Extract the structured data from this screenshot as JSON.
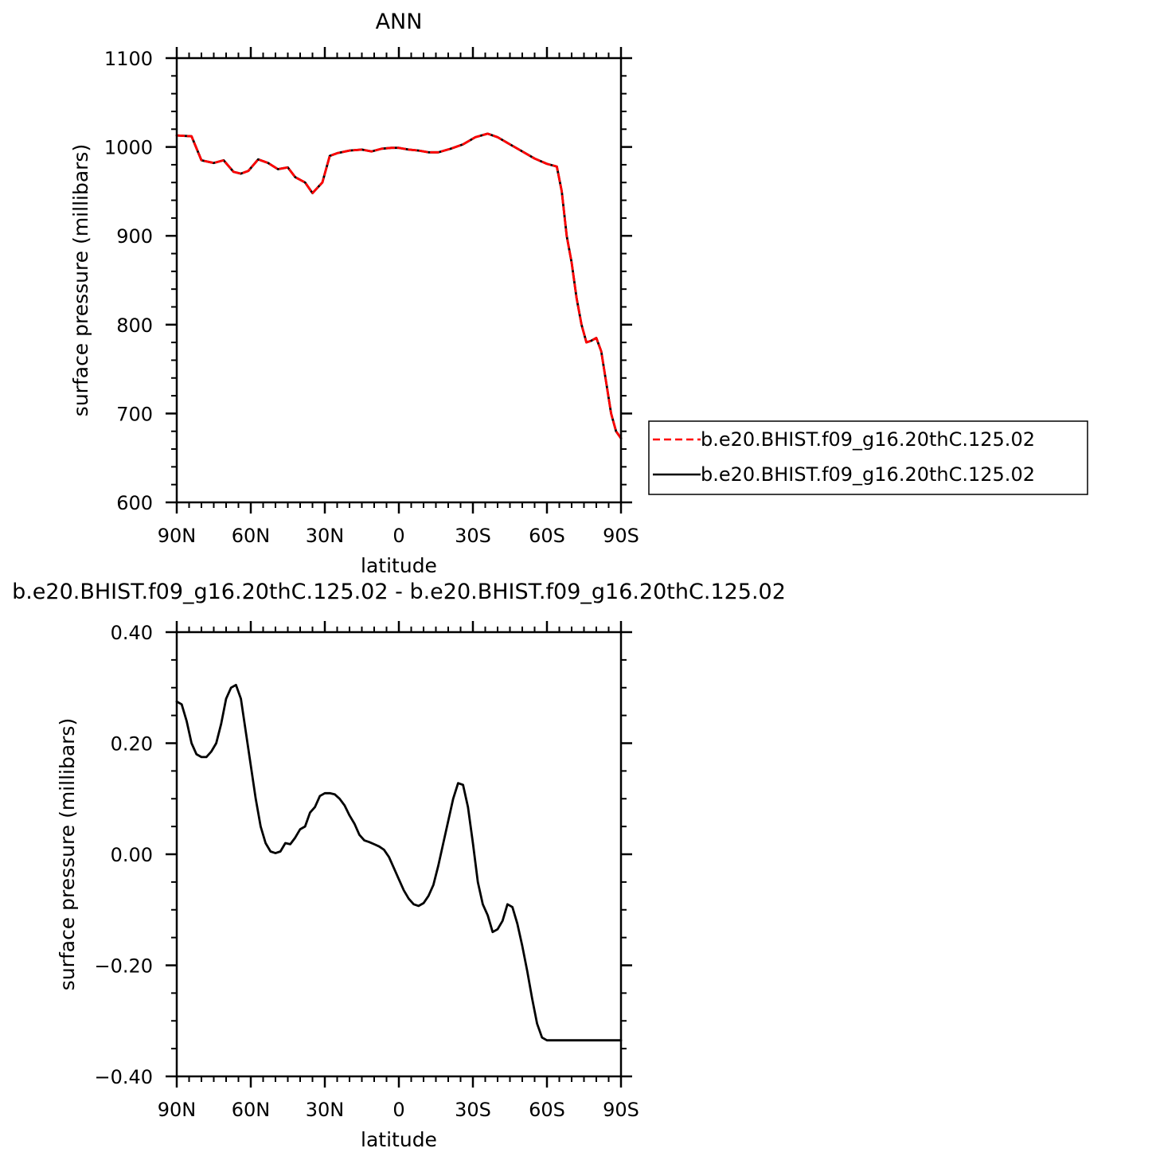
{
  "chart_data": [
    {
      "type": "line",
      "title": "ANN",
      "xlabel": "latitude",
      "ylabel": "surface pressure (millibars)",
      "xlim": [
        -90,
        90
      ],
      "ylim": [
        600,
        1100
      ],
      "x_ticks": [
        -90,
        -60,
        -30,
        0,
        30,
        60,
        90
      ],
      "x_tick_labels": [
        "90N",
        "60N",
        "30N",
        "0",
        "30S",
        "60S",
        "90S"
      ],
      "y_ticks": [
        600,
        700,
        800,
        900,
        1000,
        1100
      ],
      "y_tick_labels": [
        "600",
        "700",
        "800",
        "900",
        "1000",
        "1100"
      ],
      "legend": {
        "placement": "right",
        "entries": [
          {
            "label": "b.e20.BHIST.f09_g16.20thC.125.02",
            "color": "#ff0000",
            "style": "dashed"
          },
          {
            "label": "b.e20.BHIST.f09_g16.20thC.125.02",
            "color": "#000000",
            "style": "solid"
          }
        ]
      },
      "series": [
        {
          "color": "#000000",
          "style": "solid",
          "x": [
            -90,
            -84,
            -80,
            -75,
            -71,
            -67,
            -64,
            -61,
            -57,
            -53,
            -49,
            -45,
            -42,
            -38,
            -35,
            -31,
            -28,
            -25,
            -20,
            -15,
            -11,
            -7,
            -3,
            0,
            4,
            8,
            12,
            16,
            21,
            26,
            31,
            36,
            40,
            45,
            50,
            55,
            60,
            64,
            66,
            68,
            70,
            72,
            74,
            76,
            78,
            80,
            82,
            84,
            86,
            88,
            90
          ],
          "y": [
            1013,
            1012,
            985,
            982,
            985,
            972,
            970,
            973,
            986,
            982,
            975,
            977,
            966,
            960,
            948,
            960,
            990,
            993,
            996,
            997,
            995,
            998,
            999,
            999,
            997,
            996,
            994,
            994,
            998,
            1003,
            1011,
            1015,
            1011,
            1003,
            995,
            987,
            981,
            978,
            950,
            900,
            870,
            830,
            800,
            780,
            782,
            785,
            770,
            735,
            700,
            680,
            672
          ]
        },
        {
          "color": "#ff0000",
          "style": "dashed",
          "x": [
            -90,
            -84,
            -80,
            -75,
            -71,
            -67,
            -64,
            -61,
            -57,
            -53,
            -49,
            -45,
            -42,
            -38,
            -35,
            -31,
            -28,
            -25,
            -20,
            -15,
            -11,
            -7,
            -3,
            0,
            4,
            8,
            12,
            16,
            21,
            26,
            31,
            36,
            40,
            45,
            50,
            55,
            60,
            64,
            66,
            68,
            70,
            72,
            74,
            76,
            78,
            80,
            82,
            84,
            86,
            88,
            90
          ],
          "y": [
            1013,
            1012,
            985,
            982,
            985,
            972,
            970,
            973,
            986,
            982,
            975,
            977,
            966,
            960,
            948,
            960,
            990,
            993,
            996,
            997,
            995,
            998,
            999,
            999,
            997,
            996,
            994,
            994,
            998,
            1003,
            1011,
            1015,
            1011,
            1003,
            995,
            987,
            981,
            978,
            950,
            900,
            870,
            830,
            800,
            780,
            782,
            785,
            770,
            735,
            700,
            680,
            672
          ]
        }
      ]
    },
    {
      "type": "line",
      "title": "b.e20.BHIST.f09_g16.20thC.125.02 - b.e20.BHIST.f09_g16.20thC.125.02",
      "xlabel": "latitude",
      "ylabel": "surface pressure (millibars)",
      "xlim": [
        -90,
        90
      ],
      "ylim": [
        -0.4,
        0.4
      ],
      "x_ticks": [
        -90,
        -60,
        -30,
        0,
        30,
        60,
        90
      ],
      "x_tick_labels": [
        "90N",
        "60N",
        "30N",
        "0",
        "30S",
        "60S",
        "90S"
      ],
      "y_ticks": [
        -0.4,
        -0.2,
        0.0,
        0.2,
        0.4
      ],
      "y_tick_labels": [
        "−0.40",
        "−0.20",
        "0.00",
        "0.20",
        "0.40"
      ],
      "series": [
        {
          "color": "#000000",
          "style": "solid",
          "x": [
            -90,
            -88,
            -86,
            -84,
            -82,
            -80,
            -78,
            -76,
            -74,
            -72,
            -70,
            -68,
            -66,
            -64,
            -62,
            -60,
            -58,
            -56,
            -54,
            -52,
            -50,
            -48,
            -46,
            -44,
            -42,
            -40,
            -38,
            -36,
            -34,
            -32,
            -30,
            -28,
            -26,
            -24,
            -22,
            -20,
            -18,
            -16,
            -14,
            -12,
            -10,
            -8,
            -6,
            -4,
            -2,
            0,
            2,
            4,
            6,
            8,
            10,
            12,
            14,
            16,
            18,
            20,
            22,
            24,
            26,
            28,
            30,
            32,
            34,
            36,
            38,
            40,
            42,
            44,
            46,
            48,
            50,
            52,
            54,
            56,
            58,
            60,
            62,
            64,
            66,
            68,
            70,
            72,
            74,
            76,
            78,
            80,
            82,
            84,
            86,
            88,
            90
          ],
          "y": [
            0.275,
            0.27,
            0.24,
            0.2,
            0.18,
            0.175,
            0.175,
            0.185,
            0.2,
            0.235,
            0.28,
            0.3,
            0.305,
            0.28,
            0.22,
            0.16,
            0.1,
            0.05,
            0.02,
            0.005,
            0.002,
            0.005,
            0.02,
            0.018,
            0.03,
            0.045,
            0.05,
            0.075,
            0.085,
            0.105,
            0.11,
            0.11,
            0.108,
            0.1,
            0.088,
            0.07,
            0.055,
            0.035,
            0.025,
            0.022,
            0.018,
            0.014,
            0.008,
            -0.005,
            -0.025,
            -0.045,
            -0.065,
            -0.08,
            -0.09,
            -0.093,
            -0.088,
            -0.075,
            -0.055,
            -0.02,
            0.02,
            0.06,
            0.1,
            0.128,
            0.125,
            0.085,
            0.02,
            -0.05,
            -0.09,
            -0.11,
            -0.14,
            -0.135,
            -0.12,
            -0.09,
            -0.095,
            -0.125,
            -0.165,
            -0.21,
            -0.26,
            -0.305,
            -0.33,
            -0.335,
            -0.335,
            -0.335,
            -0.335,
            -0.335,
            -0.335,
            -0.335,
            -0.335,
            -0.335,
            -0.335,
            -0.335,
            -0.335,
            -0.335,
            -0.335,
            -0.335,
            -0.335
          ]
        }
      ]
    }
  ]
}
